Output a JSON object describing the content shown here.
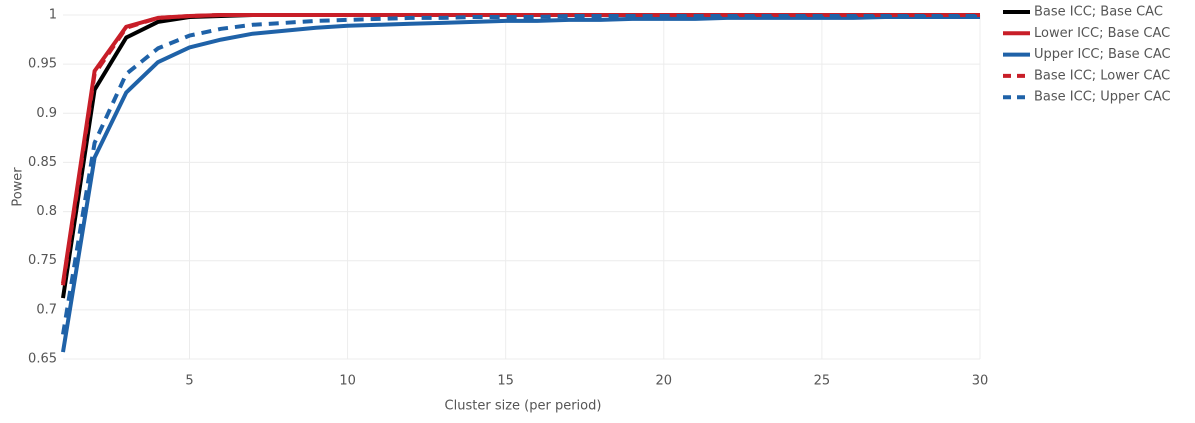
{
  "chart_data": {
    "type": "line",
    "xlabel": "Cluster size (per period)",
    "ylabel": "Power",
    "x": [
      1,
      2,
      3,
      4,
      5,
      6,
      7,
      8,
      9,
      10,
      11,
      12,
      13,
      14,
      15,
      16,
      17,
      18,
      19,
      20,
      21,
      22,
      23,
      24,
      25,
      26,
      27,
      28,
      29,
      30
    ],
    "xlim": [
      1,
      30
    ],
    "xticks": [
      5,
      10,
      15,
      20,
      25,
      30
    ],
    "ylim": [
      0.65,
      1
    ],
    "yticks": [
      0.65,
      0.7,
      0.75,
      0.8,
      0.85,
      0.9,
      0.95,
      1
    ],
    "grid": true,
    "legend": "right",
    "series": [
      {
        "name": "Base ICC; Base CAC",
        "color": "#000000",
        "line_style": "solid",
        "values": [
          0.712,
          0.924,
          0.977,
          0.993,
          0.998,
          0.999,
          1,
          1,
          1,
          1,
          1,
          1,
          1,
          1,
          1,
          1,
          1,
          1,
          1,
          1,
          1,
          1,
          1,
          1,
          1,
          1,
          1,
          1,
          1,
          1
        ]
      },
      {
        "name": "Lower ICC; Base CAC",
        "color": "#c81e28",
        "line_style": "solid",
        "values": [
          0.727,
          0.943,
          0.988,
          0.997,
          0.999,
          1,
          1,
          1,
          1,
          1,
          1,
          1,
          1,
          1,
          1,
          1,
          1,
          1,
          1,
          1,
          1,
          1,
          1,
          1,
          1,
          1,
          1,
          1,
          1,
          1
        ]
      },
      {
        "name": "Upper ICC; Base CAC",
        "color": "#1f62a8",
        "line_style": "solid",
        "values": [
          0.657,
          0.855,
          0.921,
          0.952,
          0.967,
          0.975,
          0.981,
          0.984,
          0.987,
          0.989,
          0.99,
          0.991,
          0.992,
          0.993,
          0.994,
          0.994,
          0.995,
          0.995,
          0.996,
          0.996,
          0.996,
          0.997,
          0.997,
          0.997,
          0.997,
          0.997,
          0.998,
          0.998,
          0.998,
          0.998
        ]
      },
      {
        "name": "Base ICC; Lower CAC",
        "color": "#c81e28",
        "line_style": "dashed",
        "values": [
          0.725,
          0.94,
          0.987,
          0.997,
          0.999,
          1,
          1,
          1,
          1,
          1,
          1,
          1,
          1,
          1,
          1,
          1,
          1,
          1,
          1,
          1,
          1,
          1,
          1,
          1,
          1,
          1,
          1,
          1,
          1,
          1
        ]
      },
      {
        "name": "Base ICC; Upper CAC",
        "color": "#1f62a8",
        "line_style": "dashed",
        "values": [
          0.675,
          0.87,
          0.94,
          0.966,
          0.979,
          0.986,
          0.99,
          0.992,
          0.994,
          0.995,
          0.996,
          0.997,
          0.997,
          0.998,
          0.998,
          0.998,
          0.999,
          0.999,
          0.999,
          0.999,
          0.999,
          0.999,
          0.999,
          0.999,
          0.999,
          0.999,
          0.999,
          0.999,
          0.999,
          0.999
        ]
      }
    ]
  }
}
